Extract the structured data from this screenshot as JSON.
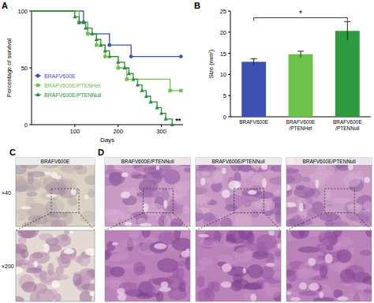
{
  "chart_data": [
    {
      "type": "line",
      "panel": "A",
      "x_label": "Days",
      "y_label": "Percentage of survival",
      "xlim": [
        0,
        350
      ],
      "xticks": [
        100,
        200,
        300
      ],
      "ylim": [
        0,
        100
      ],
      "yticks": [
        0,
        50,
        100
      ],
      "line_style": "step",
      "legend": "lower left",
      "annotation": "**",
      "series": [
        {
          "name": "BRAFV600E",
          "color": "#3f51b5",
          "marker": "circle",
          "x": [
            0,
            120,
            130,
            180,
            230,
            345
          ],
          "values": [
            100,
            90,
            80,
            70,
            60,
            60
          ]
        },
        {
          "name": "BRAFV600E/PTENHet",
          "color": "#6fc04c",
          "marker": "square",
          "x": [
            0,
            110,
            130,
            150,
            170,
            200,
            220,
            320,
            345
          ],
          "values": [
            100,
            90,
            80,
            70,
            60,
            50,
            40,
            30,
            30
          ]
        },
        {
          "name": "BRAFV600E/PTENNull",
          "color": "#2d8c3a",
          "marker": "triangle",
          "x": [
            0,
            100,
            110,
            125,
            140,
            150,
            160,
            170,
            180,
            200,
            215,
            225,
            235,
            245,
            255,
            265,
            275,
            290,
            300,
            310,
            325
          ],
          "values": [
            100,
            95,
            90,
            85,
            80,
            75,
            70,
            65,
            60,
            55,
            50,
            45,
            40,
            35,
            30,
            25,
            20,
            15,
            10,
            5,
            0
          ]
        }
      ]
    },
    {
      "type": "bar",
      "panel": "B",
      "y_label": "Size (mm²)",
      "categories": [
        "BRAFV600E",
        "BRAFV600E/PTENHet",
        "BRAFV600E/PTENNull"
      ],
      "values": [
        13,
        14.8,
        20.3
      ],
      "errors": [
        0.7,
        0.7,
        2.2
      ],
      "colors": [
        "#3d4fb3",
        "#6cc24a",
        "#2e9a3e"
      ],
      "ylim": [
        0,
        25
      ],
      "yticks": [
        0,
        5,
        10,
        15,
        20,
        25
      ],
      "annotation": "*"
    }
  ],
  "image_panels": {
    "row_labels": [
      "×40",
      "×200"
    ],
    "panels": [
      {
        "label": "C",
        "titles": [
          "BRAFV600E"
        ]
      },
      {
        "label": "D",
        "titles": [
          "BRAFV600E/PTENNull",
          "BRAFV600E/PTENNull",
          "BRAFV600E/PTENNull"
        ]
      }
    ]
  }
}
